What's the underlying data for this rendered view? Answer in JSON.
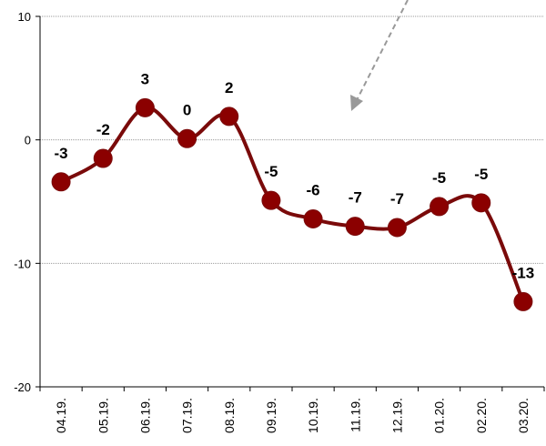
{
  "chart_data": {
    "type": "line",
    "categories": [
      "04.19.",
      "05.19.",
      "06.19.",
      "07.19.",
      "08.19.",
      "09.19.",
      "10.19.",
      "11.19.",
      "12.19.",
      "01.20.",
      "02.20.",
      "03.20."
    ],
    "values": [
      -3.4,
      -1.5,
      2.6,
      0.1,
      1.9,
      -4.9,
      -6.4,
      -7.0,
      -7.1,
      -5.4,
      -5.1,
      -13.1
    ],
    "data_labels": [
      "-3",
      "-2",
      "3",
      "0",
      "2",
      "-5",
      "-6",
      "-7",
      "-7",
      "-5",
      "-5",
      "-13"
    ],
    "ylim": [
      -20,
      10
    ],
    "yticks": [
      -20,
      -10,
      0,
      10
    ],
    "ytick_labels": [
      "-20",
      "-10",
      "0",
      "10"
    ],
    "grid": true,
    "title": "",
    "xlabel": "",
    "ylabel": "",
    "colors": {
      "line": "#7a0a0a",
      "marker": "#8b0000",
      "grid": "#999999",
      "arrow": "#999999"
    }
  }
}
